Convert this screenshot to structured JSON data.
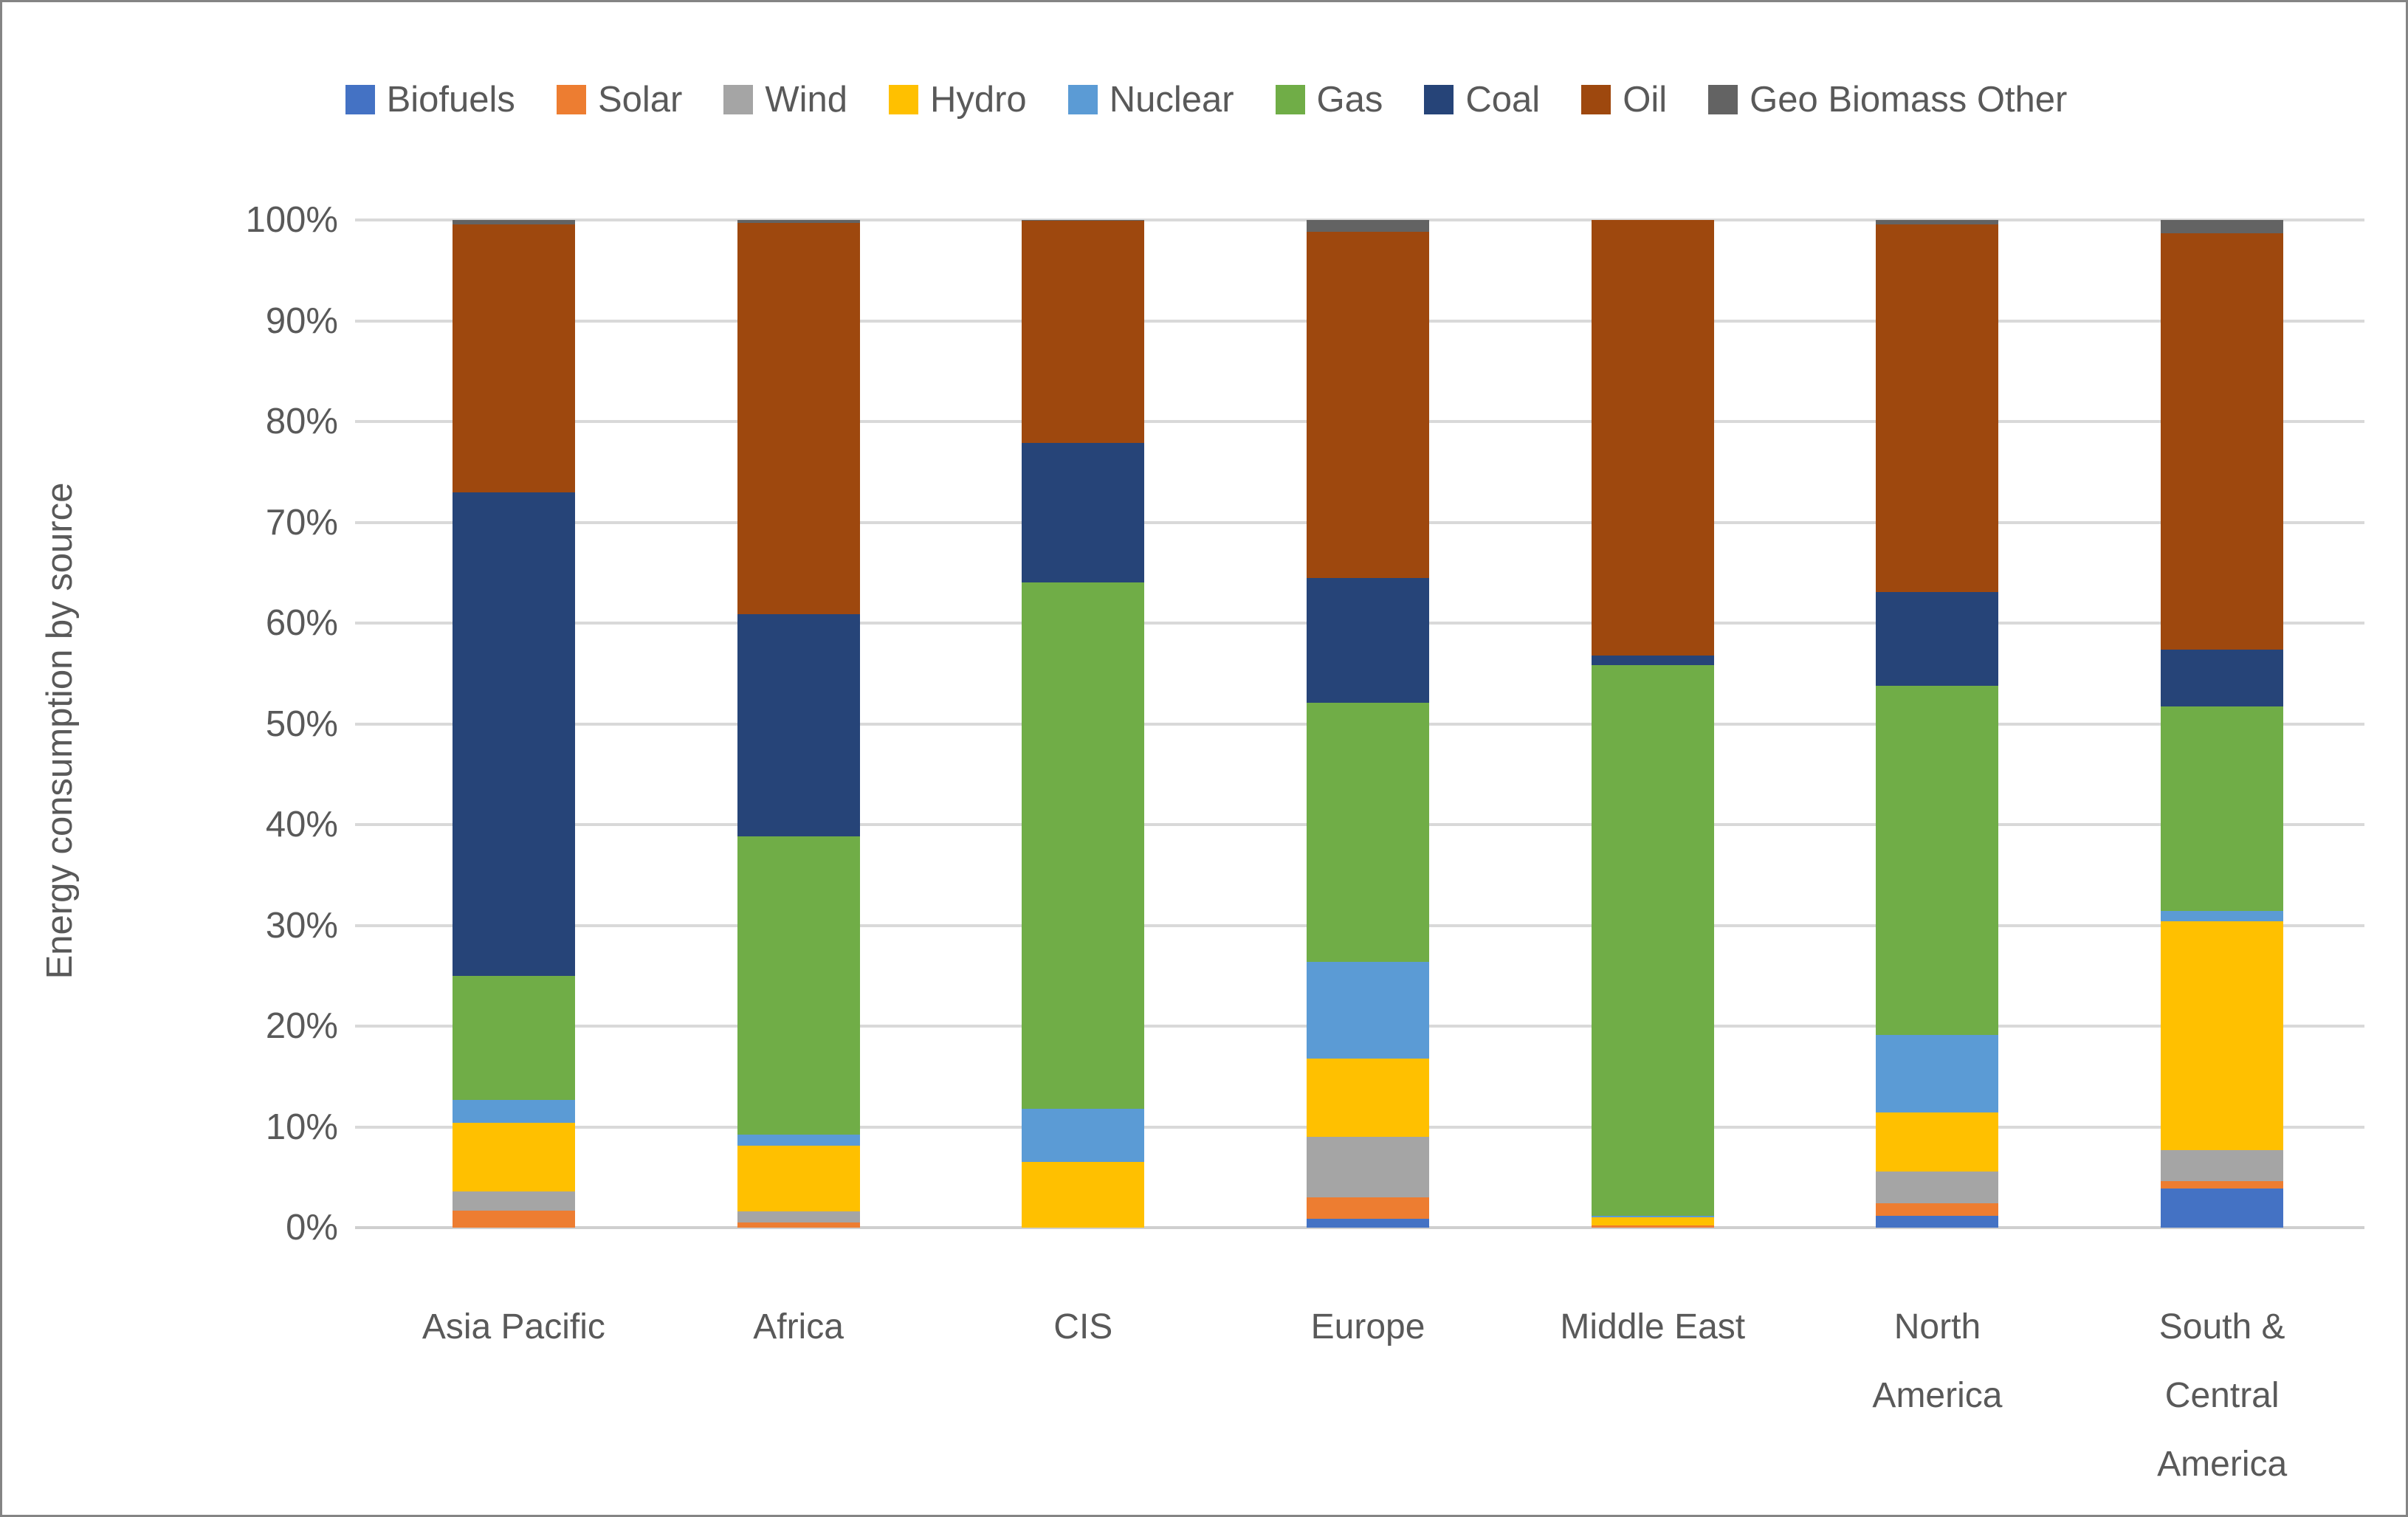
{
  "chart_data": {
    "type": "bar",
    "variant": "stacked-100-percent-column",
    "title": "",
    "xlabel": "",
    "ylabel": "Energy consumption by source",
    "ylim": [
      0,
      100
    ],
    "ytick_labels": [
      "0%",
      "10%",
      "20%",
      "30%",
      "40%",
      "50%",
      "60%",
      "70%",
      "80%",
      "90%",
      "100%"
    ],
    "grid": "horizontal",
    "legend_position": "top",
    "text_color": "#595959",
    "gridline_color": "#D9D9D9",
    "categories": [
      "Asia Pacific",
      "Africa",
      "CIS",
      "Europe",
      "Middle East",
      "North America",
      "South & Central America"
    ],
    "category_label_lines": [
      [
        "Asia Pacific"
      ],
      [
        "Africa"
      ],
      [
        "CIS"
      ],
      [
        "Europe"
      ],
      [
        "Middle East"
      ],
      [
        "North",
        "America"
      ],
      [
        "South &",
        "Central",
        "America"
      ]
    ],
    "series": [
      {
        "name": "Biofuels",
        "color": "#4472C4",
        "values": [
          0,
          0,
          0,
          0.9,
          0,
          1.2,
          3.9
        ]
      },
      {
        "name": "Solar",
        "color": "#ED7D31",
        "values": [
          1.7,
          0.5,
          0,
          2.1,
          0.2,
          1.2,
          0.7
        ]
      },
      {
        "name": "Wind",
        "color": "#A5A5A5",
        "values": [
          1.9,
          1.1,
          0,
          6.0,
          0,
          3.2,
          3.1
        ]
      },
      {
        "name": "Hydro",
        "color": "#FFC000",
        "values": [
          6.8,
          6.5,
          6.5,
          7.8,
          0.8,
          5.8,
          22.7
        ]
      },
      {
        "name": "Nuclear",
        "color": "#5B9BD5",
        "values": [
          2.3,
          1.1,
          5.3,
          9.6,
          0.2,
          7.7,
          1.0
        ]
      },
      {
        "name": "Gas",
        "color": "#70AD47",
        "values": [
          12.3,
          29.6,
          52.2,
          25.7,
          54.6,
          34.7,
          20.3
        ]
      },
      {
        "name": "Coal",
        "color": "#264478",
        "values": [
          48.0,
          22.1,
          13.9,
          12.4,
          1.0,
          9.3,
          5.7
        ]
      },
      {
        "name": "Oil",
        "color": "#9E480E",
        "values": [
          26.6,
          38.8,
          22.0,
          34.3,
          43.2,
          36.5,
          41.3
        ]
      },
      {
        "name": "Geo Biomass Other",
        "color": "#636363",
        "values": [
          0.4,
          0.3,
          0.1,
          1.2,
          0,
          0.4,
          1.3
        ]
      }
    ]
  }
}
